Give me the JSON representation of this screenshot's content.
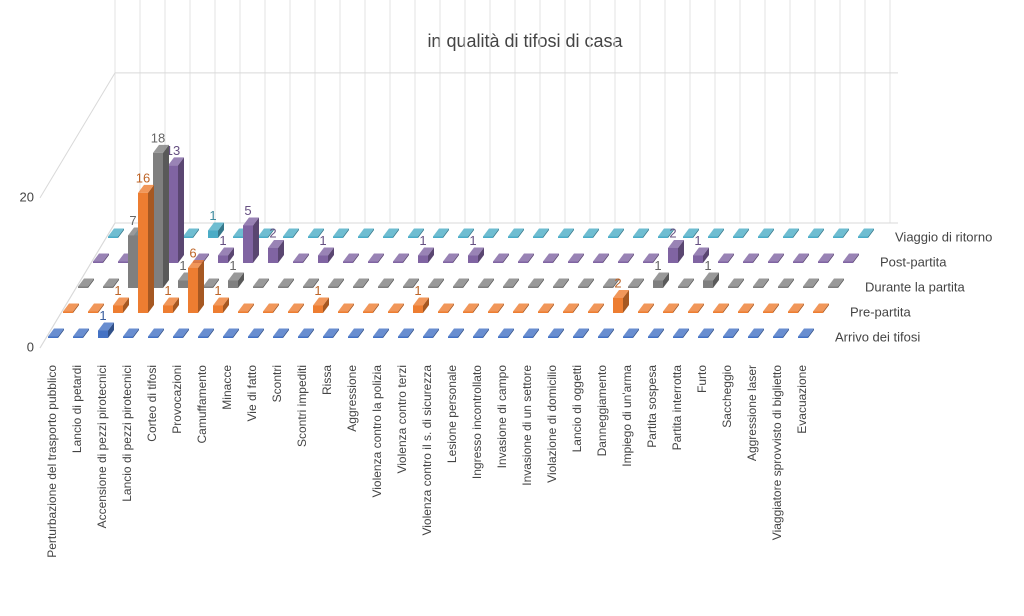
{
  "chart_data": {
    "type": "bar3d",
    "title": "in qualità di tifosi di casa",
    "categories": [
      "Perturbazione del trasporto pubblico",
      "Lancio di petardi",
      "Accensione di pezzi pirotecnici",
      "Lancio di pezzi pirotecnici",
      "Corteo di tifosi",
      "Provocazioni",
      "Camuffamento",
      "Minacce",
      "Vie di fatto",
      "Scontri",
      "Scontri impediti",
      "Rissa",
      "Aggressione",
      "Violenza contro la polizia",
      "Violenza contro terzi",
      "Violenza contro il s. di sicurezza",
      "Lesione personale",
      "Ingresso incontrollato",
      "Invasione di campo",
      "Invasione di un settore",
      "Violazione di domicilio",
      "Lancio di oggetti",
      "Danneggiamento",
      "Impiego di un'arma",
      "Partita sospesa",
      "Partita interrotta",
      "Furto",
      "Saccheggio",
      "Aggressione laser",
      "Viaggiatore sprovvisto di biglietto",
      "Evacuazione"
    ],
    "series": [
      {
        "name": "Arrivo dei tifosi",
        "color": "#4472c4",
        "values": [
          0,
          0,
          1,
          0,
          0,
          0,
          0,
          0,
          0,
          0,
          0,
          0,
          0,
          0,
          0,
          0,
          0,
          0,
          0,
          0,
          0,
          0,
          0,
          0,
          0,
          0,
          0,
          0,
          0,
          0,
          0
        ]
      },
      {
        "name": "Pre-partita",
        "color": "#ed7d31",
        "values": [
          0,
          0,
          1,
          16,
          1,
          6,
          1,
          0,
          0,
          0,
          1,
          0,
          0,
          0,
          1,
          0,
          0,
          0,
          0,
          0,
          0,
          0,
          2,
          0,
          0,
          0,
          0,
          0,
          0,
          0,
          0
        ]
      },
      {
        "name": "Durante la partita",
        "color": "#7f7f7f",
        "values": [
          0,
          0,
          7,
          18,
          1,
          0,
          1,
          0,
          0,
          0,
          0,
          0,
          0,
          0,
          0,
          0,
          0,
          0,
          0,
          0,
          0,
          0,
          0,
          1,
          0,
          1,
          0,
          0,
          0,
          0,
          0
        ]
      },
      {
        "name": "Post-partita",
        "color": "#8064a2",
        "values": [
          0,
          0,
          1,
          13,
          0,
          1,
          5,
          2,
          0,
          1,
          0,
          0,
          0,
          1,
          0,
          1,
          0,
          0,
          0,
          0,
          0,
          0,
          0,
          2,
          1,
          0,
          0,
          0,
          0,
          0,
          0
        ]
      },
      {
        "name": "Viaggio di ritorno",
        "color": "#4bacc6",
        "values": [
          0,
          0,
          0,
          0,
          1,
          0,
          0,
          0,
          0,
          0,
          0,
          0,
          0,
          0,
          0,
          0,
          0,
          0,
          0,
          0,
          0,
          0,
          0,
          0,
          0,
          0,
          0,
          0,
          0,
          0,
          0
        ]
      }
    ],
    "ylim": [
      0,
      40
    ],
    "yticks": [
      0,
      20
    ],
    "grid": true
  }
}
